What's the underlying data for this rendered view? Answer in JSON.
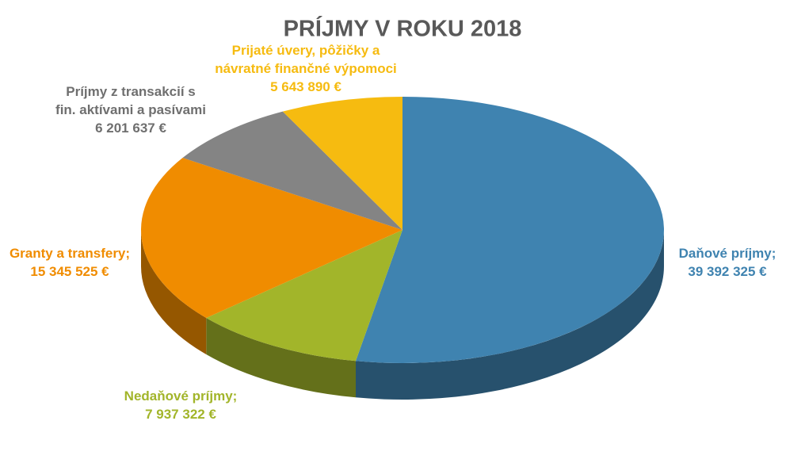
{
  "chart_data": {
    "type": "pie",
    "title": "PRÍJMY V ROKU 2018",
    "categories": [
      "Daňové príjmy;",
      "Nedaňové príjmy;",
      "Granty a transfery;",
      "Príjmy z transakcií s fin. aktívami a pasívami",
      "Prijaté úvery, pôžičky a návratné finančné výpomoci"
    ],
    "values": [
      39392325,
      7937322,
      15345525,
      6201637,
      5643890
    ],
    "value_labels": [
      "39 392 325 €",
      "7 937 322 €",
      "15 345 525 €",
      "6 201 637 €",
      "5 643 890 €"
    ],
    "colors": [
      "#3f83b0",
      "#a2b52a",
      "#f08c00",
      "#848484",
      "#f6bb10"
    ]
  }
}
